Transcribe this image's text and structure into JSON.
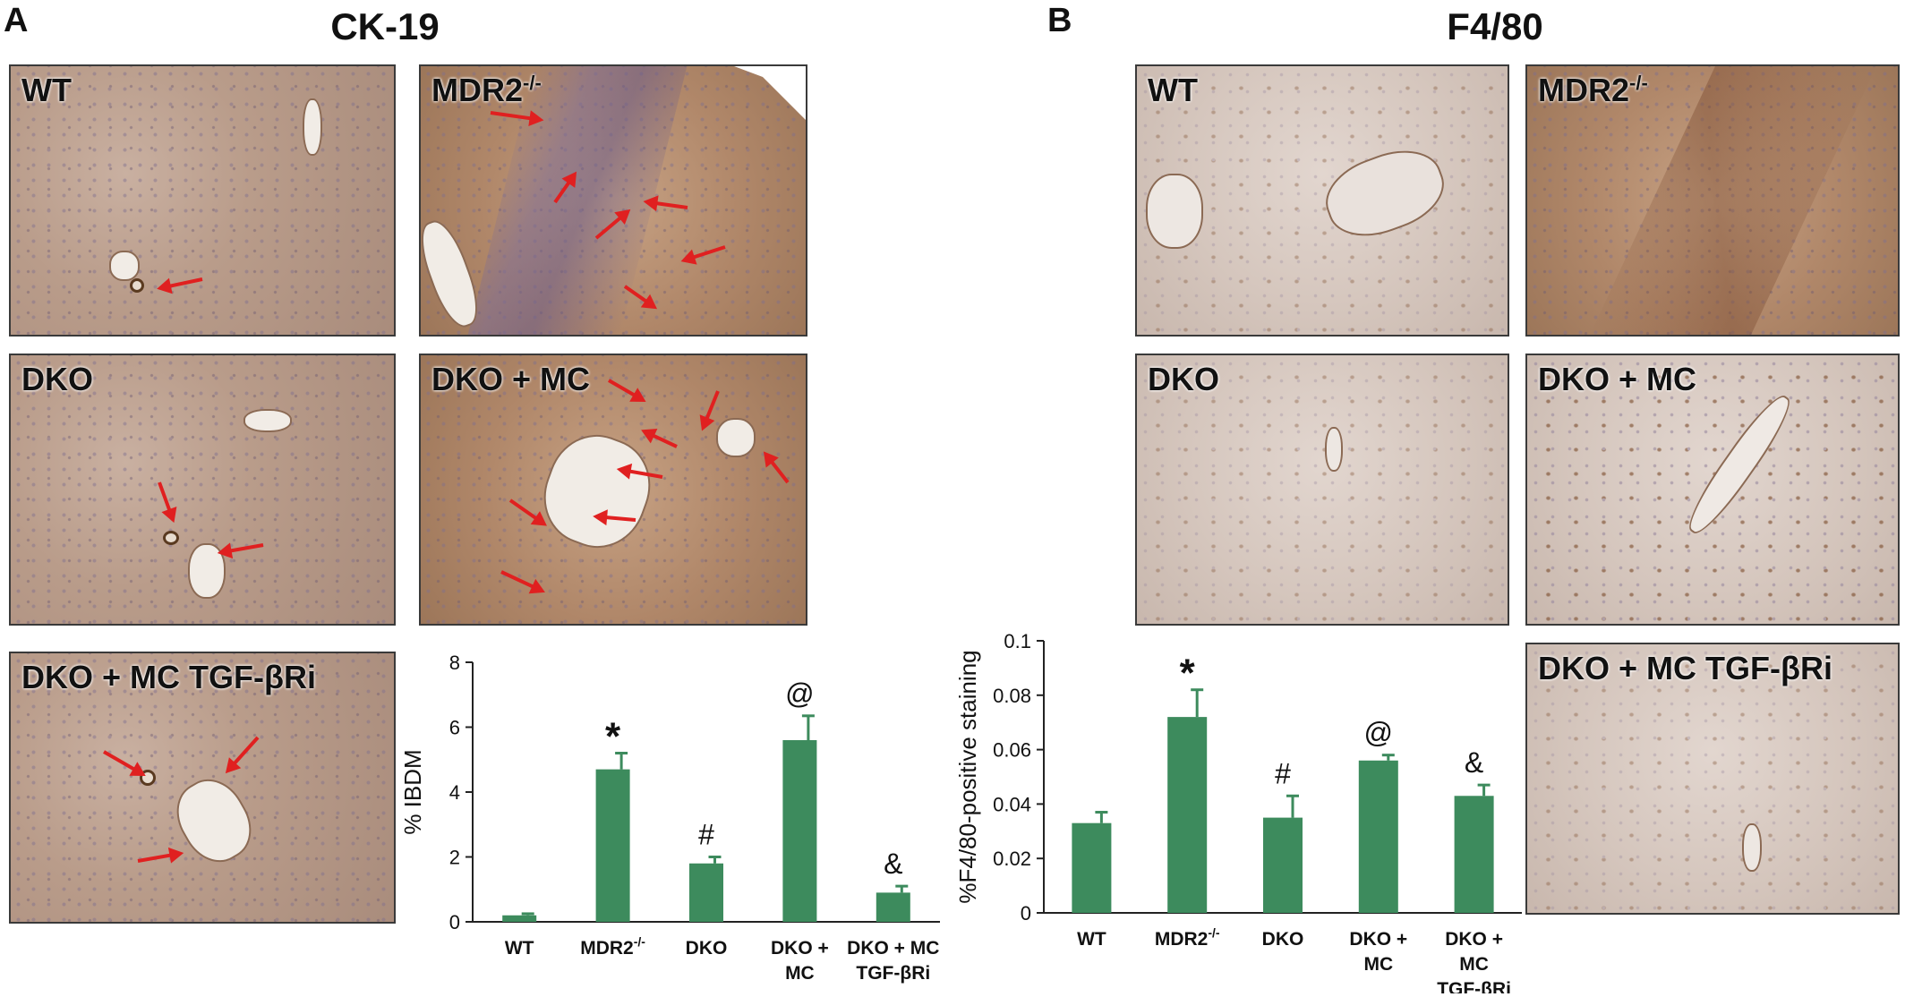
{
  "panels": {
    "a": {
      "letter": "A",
      "title": "CK-19"
    },
    "b": {
      "letter": "B",
      "title": "F4/80"
    }
  },
  "images": {
    "a_wt": "WT",
    "a_mdr2": "MDR2",
    "a_mdr2_sup": "-/-",
    "a_dko": "DKO",
    "a_dko_mc": "DKO + MC",
    "a_dko_mc_tgf": "DKO + MC TGF-βRi",
    "b_wt": "WT",
    "b_mdr2": "MDR2",
    "b_mdr2_sup": "-/-",
    "b_dko": "DKO",
    "b_dko_mc": "DKO + MC",
    "b_dko_mc_tgf": "DKO + MC TGF-βRi"
  },
  "colors": {
    "bar": "#3d8b5d",
    "arrow": "#e02020"
  },
  "chart_data": [
    {
      "type": "bar",
      "panel": "A",
      "categories": [
        [
          "WT"
        ],
        [
          "MDR2",
          "-/-"
        ],
        [
          "DKO"
        ],
        [
          "DKO +",
          "MC"
        ],
        [
          "DKO + MC",
          "TGF-βRi"
        ]
      ],
      "values": [
        0.2,
        4.7,
        1.8,
        5.6,
        0.9
      ],
      "errors": [
        0.05,
        0.5,
        0.2,
        0.75,
        0.2
      ],
      "annotations": [
        "",
        "*",
        "#",
        "@",
        "&"
      ],
      "ylabel": "% IBDM",
      "ylim": [
        0,
        8
      ],
      "yticks": [
        0,
        2,
        4,
        6,
        8
      ],
      "ytick_labels": [
        "0",
        "2",
        "4",
        "6",
        "8"
      ]
    },
    {
      "type": "bar",
      "panel": "B",
      "categories": [
        [
          "WT"
        ],
        [
          "MDR2",
          "-/-"
        ],
        [
          "DKO"
        ],
        [
          "DKO +",
          "MC"
        ],
        [
          "DKO +",
          "MC",
          "TGF-βRi"
        ]
      ],
      "values": [
        0.033,
        0.072,
        0.035,
        0.056,
        0.043
      ],
      "errors": [
        0.004,
        0.01,
        0.008,
        0.002,
        0.004
      ],
      "annotations": [
        "",
        "*",
        "#",
        "@",
        "&"
      ],
      "ylabel": "%F4/80-positive staining",
      "ylim": [
        0,
        0.1
      ],
      "yticks": [
        0,
        0.02,
        0.04,
        0.06,
        0.08,
        0.1
      ],
      "ytick_labels": [
        "0",
        "0.02",
        "0.04",
        "0.06",
        "0.08",
        "0.1"
      ]
    }
  ]
}
